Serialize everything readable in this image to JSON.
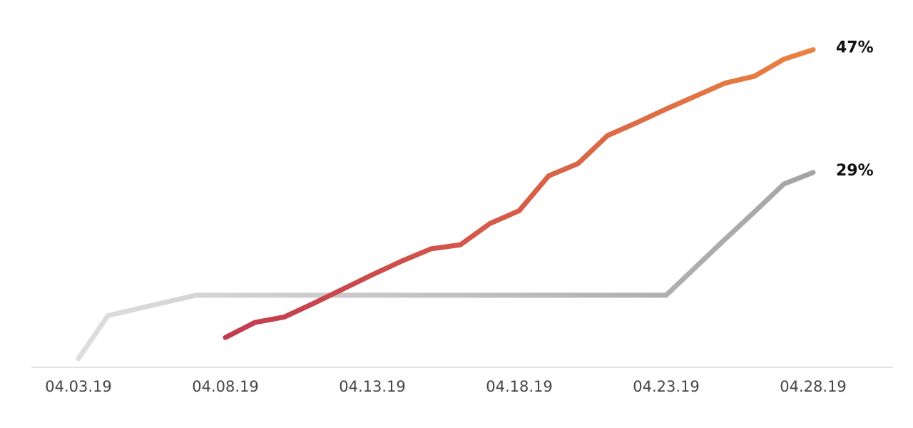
{
  "chart_data": {
    "type": "line",
    "categories": [
      "04.03.19",
      null,
      null,
      null,
      null,
      "04.08.19",
      null,
      null,
      null,
      null,
      "04.13.19",
      null,
      null,
      null,
      null,
      "04.18.19",
      null,
      null,
      null,
      null,
      "04.23.19",
      null,
      null,
      null,
      null,
      "04.28.19"
    ],
    "series": [
      {
        "name": null,
        "color": [
          "#dedede",
          "#a4a4a4"
        ],
        "values": [
          1.7,
          8,
          9,
          10,
          11,
          11,
          11,
          11,
          11,
          11,
          11,
          11,
          11,
          11,
          11,
          11,
          11,
          11,
          11,
          11,
          11,
          15.1,
          19.2,
          23.2,
          27.3,
          29
        ],
        "value_labels": [
          null,
          null,
          null,
          null,
          null,
          null,
          null,
          null,
          null,
          null,
          null,
          null,
          null,
          null,
          null,
          null,
          null,
          null,
          null,
          null,
          null,
          null,
          null,
          null,
          null,
          "29%"
        ]
      },
      {
        "name": null,
        "color": [
          "#c23a50",
          "#ea8240"
        ],
        "values": [
          null,
          null,
          null,
          null,
          null,
          4.8,
          7,
          7.8,
          9.8,
          11.9,
          14,
          16,
          17.8,
          18.4,
          21.5,
          23.4,
          28.5,
          30.3,
          34.4,
          36.3,
          38.3,
          40.2,
          42.1,
          43.1,
          45.6,
          47
        ],
        "value_labels": [
          null,
          null,
          null,
          null,
          null,
          null,
          null,
          null,
          null,
          null,
          null,
          null,
          null,
          null,
          null,
          null,
          null,
          null,
          null,
          null,
          null,
          null,
          null,
          null,
          null,
          "47%"
        ]
      }
    ],
    "ylim": [
      0,
      50
    ]
  }
}
